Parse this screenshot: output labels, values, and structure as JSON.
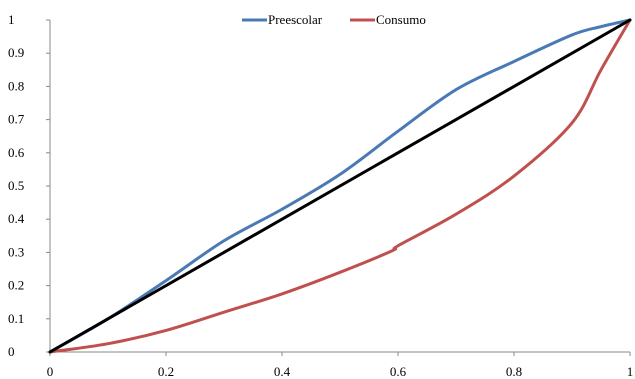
{
  "chart_data": {
    "type": "line",
    "title": "",
    "xlabel": "",
    "ylabel": "",
    "xlim": [
      0,
      1
    ],
    "ylim": [
      0,
      1
    ],
    "x_ticks": [
      "0",
      "0.2",
      "0.4",
      "0.6",
      "0.8",
      "1"
    ],
    "y_ticks": [
      "0",
      "0.1",
      "0.2",
      "0.3",
      "0.4",
      "0.5",
      "0.6",
      "0.7",
      "0.8",
      "0.9",
      "1"
    ],
    "grid": false,
    "legend_position": "top-center",
    "series": [
      {
        "name": "Preescolar",
        "color": "#4a7ab5",
        "x": [
          0,
          0.1,
          0.2,
          0.3,
          0.4,
          0.5,
          0.6,
          0.7,
          0.8,
          0.9,
          0.95,
          1
        ],
        "y": [
          0,
          0.1,
          0.215,
          0.335,
          0.43,
          0.535,
          0.665,
          0.79,
          0.875,
          0.955,
          0.98,
          1
        ]
      },
      {
        "name": "Consumo",
        "color": "#c0504d",
        "x": [
          0,
          0.1,
          0.2,
          0.3,
          0.4,
          0.5,
          0.59,
          0.6,
          0.7,
          0.8,
          0.9,
          0.95,
          1
        ],
        "y": [
          0,
          0.025,
          0.065,
          0.12,
          0.175,
          0.24,
          0.305,
          0.32,
          0.415,
          0.53,
          0.69,
          0.85,
          1
        ]
      },
      {
        "name": "",
        "color": "#000000",
        "x": [
          0,
          1
        ],
        "y": [
          0,
          1
        ]
      }
    ]
  }
}
